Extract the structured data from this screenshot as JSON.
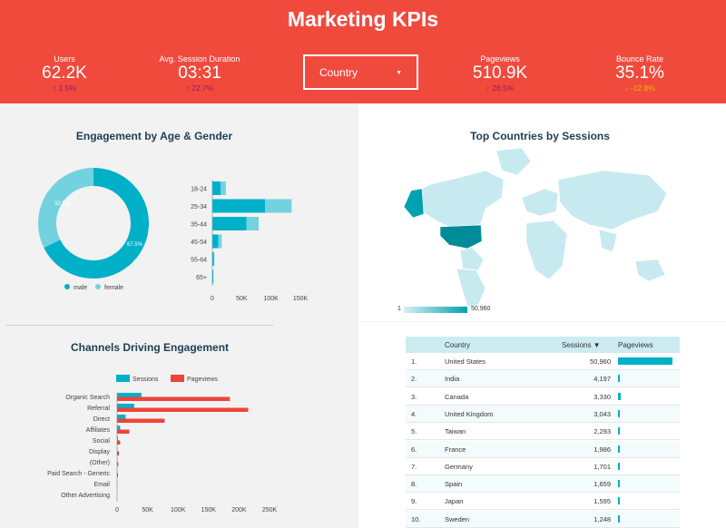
{
  "header": {
    "title": "Marketing KPIs",
    "kpis": [
      {
        "label": "Users",
        "value": "62.2K",
        "delta": "↑ 1.5%",
        "negative": false
      },
      {
        "label": "Avg. Session Duration",
        "value": "03:31",
        "delta": "↑ 22.7%",
        "negative": false
      },
      {
        "label": "Pageviews",
        "value": "510.9K",
        "delta": "↑ 26.5%",
        "negative": false
      },
      {
        "label": "Bounce Rate",
        "value": "35.1%",
        "delta": "↓ -12.8%",
        "negative": true
      }
    ],
    "filter": {
      "label": "Country",
      "arrow": "▼"
    }
  },
  "engagement": {
    "title": "Engagement by Age & Gender",
    "donut_labels": {
      "female": "32.5%",
      "male": "67.5%"
    }
  },
  "countries_map": {
    "title": "Top Countries by Sessions",
    "scale_min": "1",
    "scale_max": "50,960"
  },
  "channels": {
    "title": "Channels Driving Engagement"
  },
  "table": {
    "headers": {
      "num": "",
      "country": "Country",
      "sessions": "Sessions ▼",
      "pageviews": "Pageviews"
    },
    "rows": [
      {
        "n": "1.",
        "country": "United States",
        "sessions": "50,960",
        "pv": 1.0
      },
      {
        "n": "2.",
        "country": "India",
        "sessions": "4,197",
        "pv": 0.04
      },
      {
        "n": "3.",
        "country": "Canada",
        "sessions": "3,330",
        "pv": 0.05
      },
      {
        "n": "4.",
        "country": "United Kingdom",
        "sessions": "3,043",
        "pv": 0.03
      },
      {
        "n": "5.",
        "country": "Taiwan",
        "sessions": "2,293",
        "pv": 0.02
      },
      {
        "n": "6.",
        "country": "France",
        "sessions": "1,986",
        "pv": 0.02
      },
      {
        "n": "7.",
        "country": "Germany",
        "sessions": "1,701",
        "pv": 0.01
      },
      {
        "n": "8.",
        "country": "Spain",
        "sessions": "1,659",
        "pv": 0.02
      },
      {
        "n": "9.",
        "country": "Japan",
        "sessions": "1,595",
        "pv": 0.02
      },
      {
        "n": "10.",
        "country": "Sweden",
        "sessions": "1,248",
        "pv": 0.01
      }
    ]
  },
  "colors": {
    "header": "#f04a3d",
    "teal": "#00b0c8",
    "light_teal": "#73d2e0",
    "red": "#ef4438",
    "dark_teal": "#008b98"
  },
  "chart_data": [
    {
      "type": "pie",
      "categories": [
        "male",
        "female"
      ],
      "values": [
        67.5,
        32.5
      ],
      "title": "Engagement by Age & Gender"
    },
    {
      "type": "bar",
      "orientation": "horizontal",
      "stacked": true,
      "categories": [
        "18-24",
        "25-34",
        "35-44",
        "45-54",
        "55-64",
        "65+"
      ],
      "series": [
        {
          "name": "male",
          "values": [
            14000,
            90000,
            58000,
            10000,
            2500,
            1500
          ]
        },
        {
          "name": "female",
          "values": [
            9000,
            45000,
            21000,
            6000,
            1000,
            500
          ]
        }
      ],
      "xticks": [
        "0",
        "50K",
        "100K",
        "150K"
      ],
      "xlim": [
        0,
        150000
      ]
    },
    {
      "type": "bar",
      "orientation": "horizontal",
      "title": "Channels Driving Engagement",
      "categories": [
        "Organic Search",
        "Referral",
        "Direct",
        "Affiliates",
        "Social",
        "Display",
        "(Other)",
        "Paid Search - Generic",
        "Email",
        "Other Advertising"
      ],
      "series": [
        {
          "name": "Sessions",
          "values": [
            40000,
            28000,
            14000,
            5000,
            1500,
            500,
            500,
            300,
            100,
            50
          ]
        },
        {
          "name": "Pageviews",
          "values": [
            185000,
            215000,
            78000,
            20000,
            5000,
            3000,
            2000,
            1500,
            300,
            100
          ]
        }
      ],
      "xticks": [
        "0",
        "50K",
        "100K",
        "150K",
        "200K",
        "250K"
      ],
      "xlim": [
        0,
        250000
      ]
    }
  ]
}
